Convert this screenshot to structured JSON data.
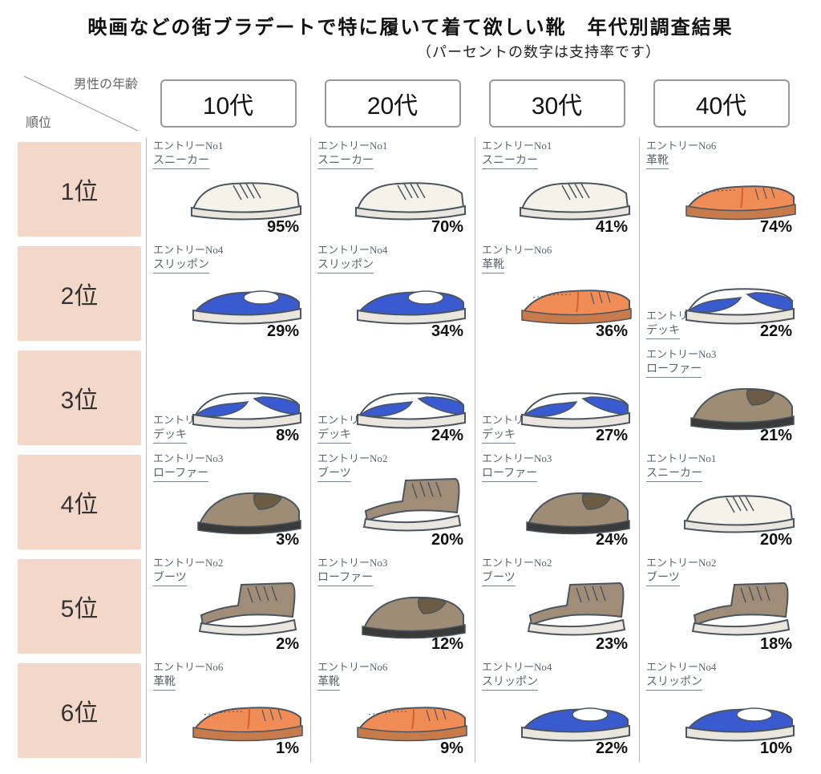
{
  "title": "映画などの街ブラデートで特に履いて着て欲しい靴　年代別調査結果",
  "subtitle": "（パーセントの数字は支持率です）",
  "axis": {
    "top": "男性の年齢",
    "left": "順位"
  },
  "ages": [
    "10代",
    "20代",
    "30代",
    "40代"
  ],
  "ranks": [
    "1位",
    "2位",
    "3位",
    "4位",
    "5位",
    "6位"
  ],
  "shoeTypes": {
    "sneaker": {
      "entry": "エントリーNo1",
      "name": "スニーカー",
      "color1": "#f5f2ea",
      "color2": "#cfcac0",
      "kind": "sneaker"
    },
    "boots": {
      "entry": "エントリーNo2",
      "name": "ブーツ",
      "color1": "#9f8d77",
      "color2": "#6f5f49",
      "kind": "boots"
    },
    "loafer": {
      "entry": "エントリーNo3",
      "name": "ローファー",
      "color1": "#9e8c74",
      "color2": "#6d5c44",
      "kind": "loafer"
    },
    "slipon": {
      "entry": "エントリーNo4",
      "name": "スリッポン",
      "color1": "#3a5bd0",
      "color2": "#2a3fa0",
      "kind": "slipon"
    },
    "deck": {
      "entry": "エントリーNo5.",
      "name": "デッキ",
      "color1": "#3a5bd0",
      "color2": "#2a3fa0",
      "kind": "deck"
    },
    "leather": {
      "entry": "エントリーNo6",
      "name": "革靴",
      "color1": "#f08c55",
      "color2": "#d4622d",
      "kind": "leather"
    }
  },
  "grid": [
    [
      {
        "shoe": "sneaker",
        "pct": "95%"
      },
      {
        "shoe": "sneaker",
        "pct": "70%"
      },
      {
        "shoe": "sneaker",
        "pct": "41%"
      },
      {
        "shoe": "leather",
        "pct": "74%"
      }
    ],
    [
      {
        "shoe": "slipon",
        "pct": "29%"
      },
      {
        "shoe": "slipon",
        "pct": "34%"
      },
      {
        "shoe": "leather",
        "pct": "36%"
      },
      {
        "shoe": "deck",
        "pct": "22%",
        "labelsBottom": true
      }
    ],
    [
      {
        "shoe": "deck",
        "pct": "8%",
        "labelsBottom": true
      },
      {
        "shoe": "deck",
        "pct": "24%",
        "labelsBottom": true
      },
      {
        "shoe": "deck",
        "pct": "27%",
        "labelsBottom": true
      },
      {
        "shoe": "loafer",
        "pct": "21%"
      }
    ],
    [
      {
        "shoe": "loafer",
        "pct": "3%"
      },
      {
        "shoe": "boots",
        "pct": "20%"
      },
      {
        "shoe": "loafer",
        "pct": "24%"
      },
      {
        "shoe": "sneaker",
        "pct": "20%"
      }
    ],
    [
      {
        "shoe": "boots",
        "pct": "2%"
      },
      {
        "shoe": "loafer",
        "pct": "12%"
      },
      {
        "shoe": "boots",
        "pct": "23%"
      },
      {
        "shoe": "boots",
        "pct": "18%"
      }
    ],
    [
      {
        "shoe": "leather",
        "pct": "1%"
      },
      {
        "shoe": "leather",
        "pct": "9%"
      },
      {
        "shoe": "slipon",
        "pct": "22%"
      },
      {
        "shoe": "slipon",
        "pct": "10%"
      }
    ]
  ],
  "colors": {
    "rankBg": "#f3d8ca",
    "border": "#bbbbbb",
    "sole": "#eae6de"
  }
}
